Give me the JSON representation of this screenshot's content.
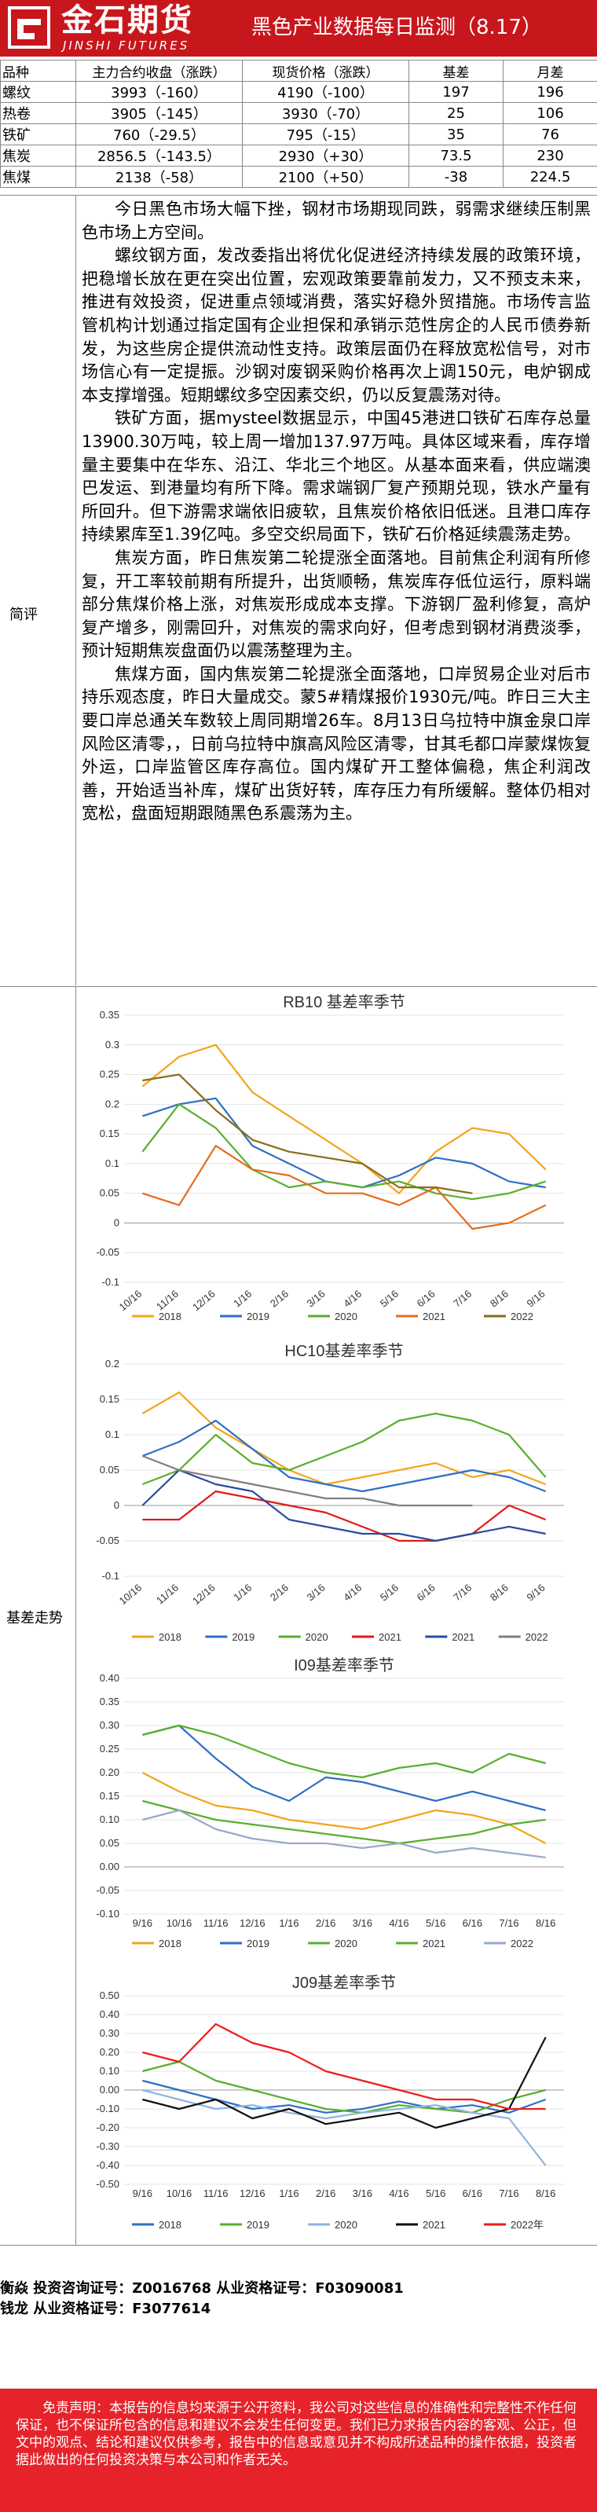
{
  "brand": {
    "name_cn": "金石期货",
    "name_en": "JINSHI FUTURES",
    "colors": {
      "header_red": "#c8161d",
      "disclaimer_red": "#e6232a"
    }
  },
  "report_title": "黑色产业数据每日监测（8.17）",
  "price_table": {
    "headers": [
      "品种",
      "主力合约收盘（涨跌）",
      "现货价格（涨跌）",
      "基差",
      "月差"
    ],
    "rows": [
      [
        "螺纹",
        "3993（-160）",
        "4190（-100）",
        "197",
        "196"
      ],
      [
        "热卷",
        "3905（-145）",
        "3930（-70）",
        "25",
        "106"
      ],
      [
        "铁矿",
        "760（-29.5）",
        "795（-15）",
        "35",
        "76"
      ],
      [
        "焦炭",
        "2856.5（-143.5）",
        "2930（+30）",
        "73.5",
        "230"
      ],
      [
        "焦煤",
        "2138（-58）",
        "2100（+50）",
        "-38",
        "224.5"
      ]
    ]
  },
  "commentary": {
    "label": "简评",
    "paragraphs": [
      "今日黑色市场大幅下挫，钢材市场期现同跌，弱需求继续压制黑色市场上方空间。",
      "螺纹钢方面，发改委指出将优化促进经济持续发展的政策环境，把稳增长放在更在突出位置，宏观政策要靠前发力，又不预支未来，推进有效投资，促进重点领域消费，落实好稳外贸措施。市场传言监管机构计划通过指定国有企业担保和承销示范性房企的人民币债券新发，为这些房企提供流动性支持。政策层面仍在释放宽松信号，对市场信心有一定提振。沙钢对废钢采购价格再次上调150元，电炉钢成本支撑增强。短期螺纹多空因素交织，仍以反复震荡对待。",
      "铁矿方面，据mysteel数据显示，中国45港进口铁矿石库存总量13900.30万吨，较上周一增加137.97万吨。具体区域来看，库存增量主要集中在华东、沿江、华北三个地区。从基本面来看，供应端澳巴发运、到港量均有所下降。需求端钢厂复产预期兑现，铁水产量有所回升。但下游需求端依旧疲软，且焦炭价格依旧低迷。且港口库存持续累库至1.39亿吨。多空交织局面下，铁矿石价格延续震荡走势。",
      "焦炭方面，昨日焦炭第二轮提涨全面落地。目前焦企利润有所修复，开工率较前期有所提升，出货顺畅，焦炭库存低位运行，原料端部分焦煤价格上涨，对焦炭形成成本支撑。下游钢厂盈利修复，高炉复产增多，刚需回升，对焦炭的需求向好，但考虑到钢材消费淡季，预计短期焦炭盘面仍以震荡整理为主。",
      "焦煤方面，国内焦炭第二轮提涨全面落地，口岸贸易企业对后市持乐观态度，昨日大量成交。蒙5#精煤报价1930元/吨。昨日三大主要口岸总通关车数较上周同期增26车。8月13日乌拉特中旗金泉口岸风险区清零，，日前乌拉特中旗高风险区清零，甘其毛都口岸蒙煤恢复外运，口岸监管区库存高位。国内煤矿开工整体偏稳，焦企利润改善，开始适当补库，煤矿出货好转，库存压力有所缓解。整体仍相对宽松，盘面短期跟随黑色系震荡为主。"
    ]
  },
  "basis_section": {
    "label": "基差走势",
    "palette": {
      "2018": "#f2a51b",
      "2019": "#2e6fc4",
      "2020": "#5aae2e",
      "2021": "#e66c1c",
      "2022": "#8a6d1a",
      "hc2020": "#e31818",
      "hc2021": "#2a4c9e",
      "hc2022": "#7f7f7f",
      "i2020": "#9aa9c8",
      "j2020": "#8cb4e0",
      "j2021": "#111111",
      "j2022": "#ee1c1c"
    }
  },
  "chart_data": [
    {
      "type": "line",
      "title": "RB10 基差率季节",
      "xlabel": "",
      "ylabel": "",
      "ylim": [
        -0.1,
        0.35
      ],
      "yticks": [
        "0.35",
        "0.3",
        "0.25",
        "0.2",
        "0.15",
        "0.1",
        "0.05",
        "0",
        "-0.05",
        "-0.1"
      ],
      "x_ticks": [
        "10/16",
        "11/16",
        "12/16",
        "1/16",
        "2/16",
        "3/16",
        "4/16",
        "5/16",
        "6/16",
        "7/16",
        "8/16",
        "9/16"
      ],
      "series": [
        {
          "name": "2018",
          "color_key": "2018",
          "values": [
            0.23,
            0.28,
            0.3,
            0.22,
            0.18,
            0.14,
            0.1,
            0.05,
            0.12,
            0.16,
            0.15,
            0.09
          ]
        },
        {
          "name": "2019",
          "color_key": "2019",
          "values": [
            0.18,
            0.2,
            0.21,
            0.13,
            0.1,
            0.07,
            0.06,
            0.08,
            0.11,
            0.1,
            0.07,
            0.06
          ]
        },
        {
          "name": "2020",
          "color_key": "2020",
          "values": [
            0.12,
            0.2,
            0.16,
            0.09,
            0.06,
            0.07,
            0.06,
            0.07,
            0.05,
            0.04,
            0.05,
            0.07
          ]
        },
        {
          "name": "2021",
          "color_key": "2021",
          "values": [
            0.05,
            0.03,
            0.13,
            0.09,
            0.08,
            0.05,
            0.05,
            0.03,
            0.06,
            -0.01,
            0.0,
            0.03
          ]
        },
        {
          "name": "2022",
          "color_key": "2022",
          "values": [
            0.24,
            0.25,
            0.19,
            0.14,
            0.12,
            0.11,
            0.1,
            0.06,
            0.06,
            0.05
          ]
        }
      ]
    },
    {
      "type": "line",
      "title": "HC10基差率季节",
      "xlabel": "",
      "ylabel": "",
      "ylim": [
        -0.1,
        0.2
      ],
      "yticks": [
        "0.2",
        "0.15",
        "0.1",
        "0.05",
        "0",
        "-0.05",
        "-0.1"
      ],
      "x_ticks": [
        "10/16",
        "11/16",
        "12/16",
        "1/16",
        "2/16",
        "3/16",
        "4/16",
        "5/16",
        "6/16",
        "7/16",
        "8/16",
        "9/16"
      ],
      "series": [
        {
          "name": "2018",
          "color_key": "2018",
          "values": [
            0.13,
            0.16,
            0.11,
            0.08,
            0.05,
            0.03,
            0.04,
            0.05,
            0.06,
            0.04,
            0.05,
            0.03
          ]
        },
        {
          "name": "2019",
          "color_key": "2019",
          "values": [
            0.07,
            0.09,
            0.12,
            0.08,
            0.04,
            0.03,
            0.02,
            0.03,
            0.04,
            0.05,
            0.04,
            0.02
          ]
        },
        {
          "name": "2020",
          "color_key": "2020",
          "values": [
            0.03,
            0.05,
            0.1,
            0.06,
            0.05,
            0.07,
            0.09,
            0.12,
            0.13,
            0.12,
            0.1,
            0.04
          ]
        },
        {
          "name": "2021",
          "color_key": "hc2020",
          "values": [
            -0.02,
            -0.02,
            0.02,
            0.01,
            0.0,
            -0.01,
            -0.03,
            -0.05,
            -0.05,
            -0.04,
            0.0,
            -0.02
          ]
        },
        {
          "name": "2021",
          "color_key": "hc2021",
          "values": [
            0.0,
            0.05,
            0.03,
            0.02,
            -0.02,
            -0.03,
            -0.04,
            -0.04,
            -0.05,
            -0.04,
            -0.03,
            -0.04
          ]
        },
        {
          "name": "2022",
          "color_key": "hc2022",
          "values": [
            0.07,
            0.05,
            0.04,
            0.03,
            0.02,
            0.01,
            0.01,
            0.0,
            0.0,
            0.0
          ]
        }
      ],
      "legend": [
        "2018",
        "2019",
        "2020",
        "2021",
        "2021",
        "2022"
      ]
    },
    {
      "type": "line",
      "title": "I09基差率季节",
      "xlabel": "",
      "ylabel": "",
      "ylim": [
        -0.1,
        0.4
      ],
      "yticks": [
        "0.40",
        "0.35",
        "0.30",
        "0.25",
        "0.20",
        "0.15",
        "0.10",
        "0.05",
        "0.00",
        "-0.05",
        "-0.10"
      ],
      "x_ticks": [
        "9/16",
        "10/16",
        "11/16",
        "12/16",
        "1/16",
        "2/16",
        "3/16",
        "4/16",
        "5/16",
        "6/16",
        "7/16",
        "8/16"
      ],
      "series": [
        {
          "name": "2018",
          "color_key": "2018",
          "values": [
            0.2,
            0.16,
            0.13,
            0.12,
            0.1,
            0.09,
            0.08,
            0.1,
            0.12,
            0.11,
            0.09,
            0.05
          ]
        },
        {
          "name": "2019",
          "color_key": "2019",
          "values": [
            0.28,
            0.3,
            0.23,
            0.17,
            0.14,
            0.19,
            0.18,
            0.16,
            0.14,
            0.16,
            0.14,
            0.12
          ]
        },
        {
          "name": "2020",
          "color_key": "2020",
          "values": [
            0.14,
            0.12,
            0.1,
            0.09,
            0.08,
            0.07,
            0.06,
            0.05,
            0.06,
            0.07,
            0.09,
            0.1
          ]
        },
        {
          "name": "2021",
          "color_key": "2020",
          "values": [
            0.28,
            0.3,
            0.28,
            0.25,
            0.22,
            0.2,
            0.19,
            0.21,
            0.22,
            0.2,
            0.24,
            0.22
          ]
        },
        {
          "name": "2022",
          "color_key": "i2020",
          "values": [
            0.1,
            0.12,
            0.08,
            0.06,
            0.05,
            0.05,
            0.04,
            0.05,
            0.03,
            0.04,
            0.03,
            0.02
          ]
        }
      ],
      "legend_scrambled": [
        "9/16",
        "2018",
        "11/16",
        "2019",
        "1/16",
        "2/16",
        "2020",
        "4/16",
        "2021",
        "6/16",
        "7/16",
        "2022",
        "8/16"
      ]
    },
    {
      "type": "line",
      "title": "J09基差率季节",
      "xlabel": "",
      "ylabel": "",
      "ylim": [
        -0.5,
        0.5
      ],
      "yticks": [
        "0.50",
        "0.40",
        "0.30",
        "0.20",
        "0.10",
        "0.00",
        "-0.10",
        "-0.20",
        "-0.30",
        "-0.40",
        "-0.50"
      ],
      "x_ticks": [
        "9/16",
        "10/16",
        "11/16",
        "12/16",
        "1/16",
        "2/16",
        "3/16",
        "4/16",
        "5/16",
        "6/16",
        "7/16",
        "8/16"
      ],
      "series": [
        {
          "name": "2018",
          "color_key": "2019",
          "values": [
            0.05,
            0.0,
            -0.05,
            -0.1,
            -0.08,
            -0.12,
            -0.1,
            -0.06,
            -0.1,
            -0.08,
            -0.12,
            -0.05
          ]
        },
        {
          "name": "2019",
          "color_key": "2020",
          "values": [
            0.1,
            0.15,
            0.05,
            0.0,
            -0.05,
            -0.1,
            -0.12,
            -0.08,
            -0.1,
            -0.12,
            -0.05,
            0.0
          ]
        },
        {
          "name": "2020",
          "color_key": "j2020",
          "values": [
            0.0,
            -0.05,
            -0.1,
            -0.08,
            -0.12,
            -0.15,
            -0.12,
            -0.1,
            -0.08,
            -0.12,
            -0.15,
            -0.4
          ]
        },
        {
          "name": "2021",
          "color_key": "j2021",
          "values": [
            -0.05,
            -0.1,
            -0.05,
            -0.15,
            -0.1,
            -0.18,
            -0.15,
            -0.12,
            -0.2,
            -0.15,
            -0.1,
            0.28
          ]
        },
        {
          "name": "2022年",
          "color_key": "j2022",
          "values": [
            0.2,
            0.15,
            0.35,
            0.25,
            0.2,
            0.1,
            0.05,
            0.0,
            -0.05,
            -0.05,
            -0.1,
            -0.1
          ]
        }
      ]
    }
  ],
  "analysts": [
    "衡焱 投资咨询证号：Z0016768 从业资格证号：F03090081",
    "钱龙 从业资格证号：F3077614"
  ],
  "disclaimer": "免责声明：本报告的信息均来源于公开资料，我公司对这些信息的准确性和完整性不作任何保证，也不保证所包含的信息和建议不会发生任何变更。我们已力求报告内容的客观、公正，但文中的观点、结论和建议仅供参考，报告中的信息或意见并不构成所述品种的操作依据，投资者据此做出的任何投资决策与本公司和作者无关。"
}
